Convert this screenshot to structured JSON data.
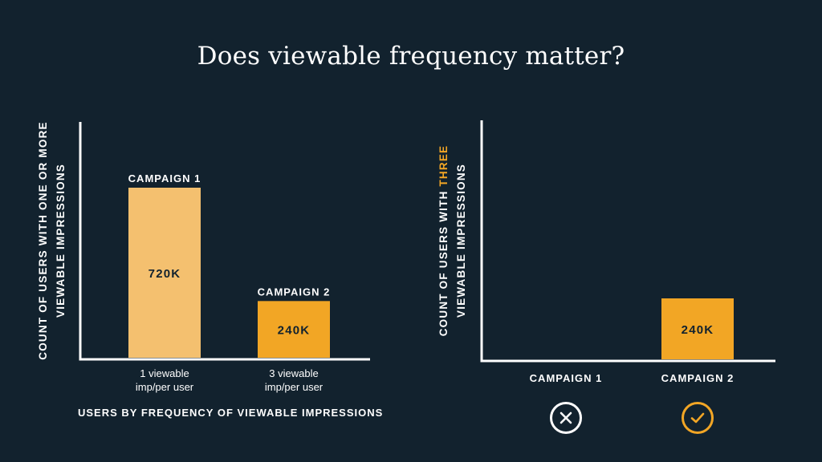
{
  "title": "Does viewable frequency matter?",
  "colors": {
    "background": "#12222e",
    "light_bar": "#f4c06f",
    "bar": "#f2a625",
    "text": "#ffffff",
    "accent": "#f2a625"
  },
  "chart_data": [
    {
      "type": "bar",
      "ylabel_lines": [
        "COUNT OF USERS WITH ONE OR MORE",
        "VIEWABLE IMPRESSIONS"
      ],
      "xlabel": "USERS BY FREQUENCY OF VIEWABLE IMPRESSIONS",
      "categories": [
        "1 viewable imp/per user",
        "3 viewable imp/per user"
      ],
      "tick_lines": [
        [
          "1 viewable",
          "imp/per user"
        ],
        [
          "3 viewable",
          "imp/per user"
        ]
      ],
      "bar_titles": [
        "CAMPAIGN 1",
        "CAMPAIGN 2"
      ],
      "values": [
        720000,
        240000
      ],
      "value_labels": [
        "720K",
        "240K"
      ],
      "bar_colors": [
        "#f4c06f",
        "#f2a625"
      ],
      "grid": false
    },
    {
      "type": "bar",
      "ylabel_prefix": "COUNT OF USERS WITH ",
      "ylabel_highlight": "THREE",
      "ylabel_line2": "VIEWABLE IMPRESSIONS",
      "categories": [
        "CAMPAIGN 1",
        "CAMPAIGN 2"
      ],
      "values": [
        0,
        240000
      ],
      "value_labels": [
        "",
        "240K"
      ],
      "bar_colors": [
        "#f2a625",
        "#f2a625"
      ],
      "category_status": [
        "cross-icon",
        "check-icon"
      ],
      "grid": false
    }
  ]
}
